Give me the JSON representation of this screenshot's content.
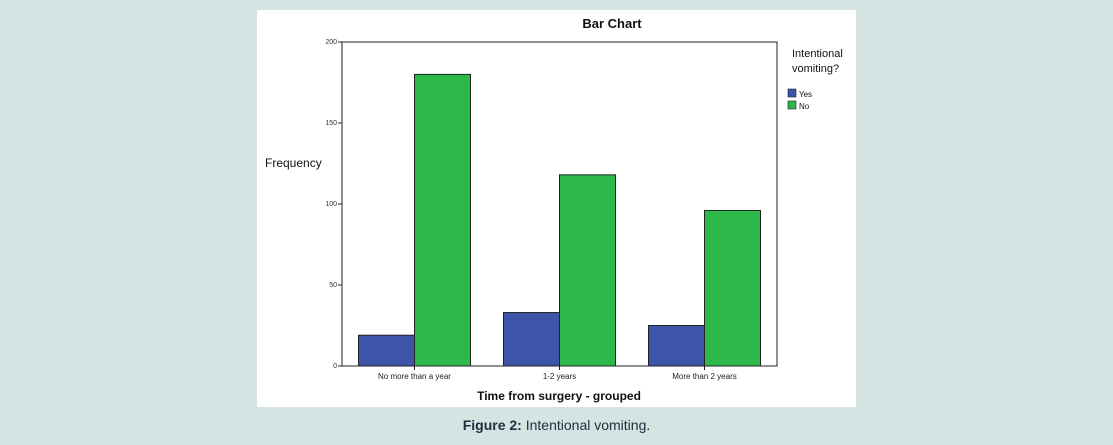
{
  "chart_data": {
    "type": "bar",
    "title": "Bar Chart",
    "xlabel": "Time from surgery - grouped",
    "ylabel": "Frequency",
    "categories": [
      "No more than a year",
      "1-2 years",
      "More than 2 years"
    ],
    "series": [
      {
        "name": "Yes",
        "values": [
          19,
          33,
          25
        ]
      },
      {
        "name": "No",
        "values": [
          180,
          118,
          96
        ]
      }
    ],
    "ylim": [
      0,
      200
    ],
    "yticks": [
      0,
      50,
      100,
      150,
      200
    ],
    "grid": false,
    "legend": {
      "title": "Intentional vomiting?",
      "placement": "right"
    }
  },
  "colors": {
    "yes": "#3d55a8",
    "no": "#2db84a"
  },
  "caption": {
    "label": "Figure 2:",
    "text": "Intentional vomiting."
  }
}
